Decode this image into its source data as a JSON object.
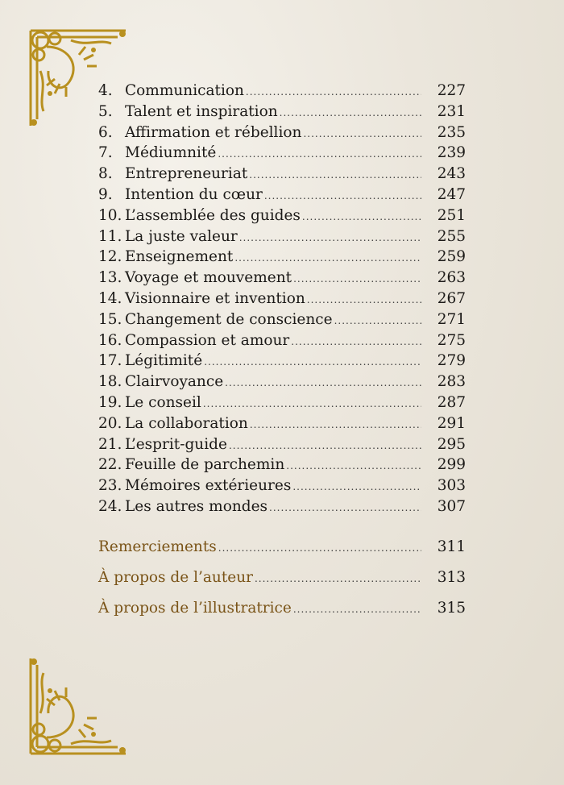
{
  "colors": {
    "text": "#1c1a18",
    "accent": "#7a5418",
    "ornament": "#b8901f"
  },
  "ornaments": [
    "corner-ornament-top-left",
    "corner-ornament-bottom-left"
  ],
  "chapters": [
    {
      "num": "4.",
      "title": "Communication",
      "page": "227"
    },
    {
      "num": "5.",
      "title": "Talent et inspiration",
      "page": "231"
    },
    {
      "num": "6.",
      "title": "Affirmation et rébellion",
      "page": "235"
    },
    {
      "num": "7.",
      "title": "Médiumnité",
      "page": "239"
    },
    {
      "num": "8.",
      "title": "Entrepreneuriat",
      "page": "243"
    },
    {
      "num": "9.",
      "title": "Intention du cœur",
      "page": "247"
    },
    {
      "num": "10.",
      "title": "L’assemblée des guides",
      "page": "251"
    },
    {
      "num": "11.",
      "title": "La juste valeur",
      "page": "255"
    },
    {
      "num": "12.",
      "title": "Enseignement",
      "page": "259"
    },
    {
      "num": "13.",
      "title": "Voyage et mouvement",
      "page": "263"
    },
    {
      "num": "14.",
      "title": "Visionnaire et invention",
      "page": "267"
    },
    {
      "num": "15.",
      "title": "Changement de conscience",
      "page": "271"
    },
    {
      "num": "16.",
      "title": "Compassion et amour",
      "page": "275"
    },
    {
      "num": "17.",
      "title": "Légitimité",
      "page": "279"
    },
    {
      "num": "18.",
      "title": "Clairvoyance",
      "page": "283"
    },
    {
      "num": "19.",
      "title": "Le conseil",
      "page": "287"
    },
    {
      "num": "20.",
      "title": "La collaboration",
      "page": "291"
    },
    {
      "num": "21.",
      "title": "L’esprit-guide",
      "page": "295"
    },
    {
      "num": "22.",
      "title": "Feuille de parchemin",
      "page": "299"
    },
    {
      "num": "23.",
      "title": "Mémoires extérieures",
      "page": "303"
    },
    {
      "num": "24.",
      "title": "Les autres mondes",
      "page": "307"
    }
  ],
  "appendix": [
    {
      "title": "Remerciements",
      "page": "311"
    },
    {
      "title": "À propos de l’auteur",
      "page": "313"
    },
    {
      "title": "À propos de l’illustratrice",
      "page": "315"
    }
  ]
}
